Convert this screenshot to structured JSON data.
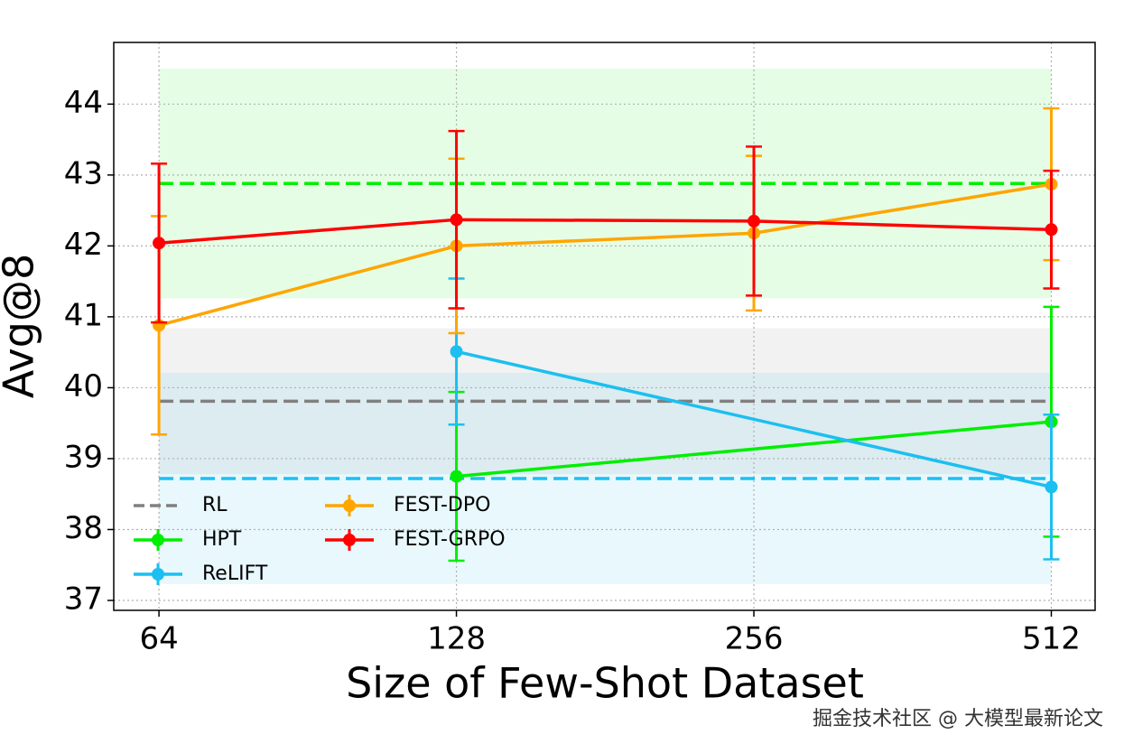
{
  "chart_data": {
    "type": "errorbar-line",
    "xlabel": "Size of Few-Shot Dataset",
    "ylabel": "Avg@8",
    "xscale": "log2",
    "xlim": [
      57.6,
      567
    ],
    "xticks": [
      64,
      128,
      256,
      512
    ],
    "ylim": [
      36.86,
      44.87
    ],
    "yticks": [
      37,
      38,
      39,
      40,
      41,
      42,
      43,
      44
    ],
    "grid": true,
    "legend_loc": "lower left",
    "series": [
      {
        "name": "RL",
        "color": "#808080",
        "baseline": 39.81,
        "band": [
          38.78,
          40.84
        ]
      },
      {
        "name": "HPT",
        "color": "#00ee00",
        "baseline": 42.88,
        "band": [
          41.26,
          44.5
        ],
        "x": [
          128,
          512
        ],
        "values": [
          38.75,
          39.52
        ],
        "errors": [
          1.19,
          1.62
        ]
      },
      {
        "name": "ReLIFT",
        "color": "#1cbff0",
        "baseline": 38.72,
        "band": [
          37.23,
          40.21
        ],
        "x": [
          128,
          512
        ],
        "values": [
          40.51,
          38.6
        ],
        "errors": [
          1.03,
          1.02
        ]
      },
      {
        "name": "FEST-DPO",
        "color": "#ffa500",
        "x": [
          64,
          128,
          256,
          512
        ],
        "values": [
          40.88,
          42.0,
          42.18,
          42.87
        ],
        "errors": [
          1.54,
          1.23,
          1.09,
          1.07
        ]
      },
      {
        "name": "FEST-GRPO",
        "color": "#ff0000",
        "x": [
          64,
          128,
          256,
          512
        ],
        "values": [
          42.04,
          42.37,
          42.35,
          42.23
        ],
        "errors": [
          1.12,
          1.25,
          1.05,
          0.83
        ]
      }
    ]
  },
  "watermark": "掘金技术社区 @ 大模型最新论文"
}
